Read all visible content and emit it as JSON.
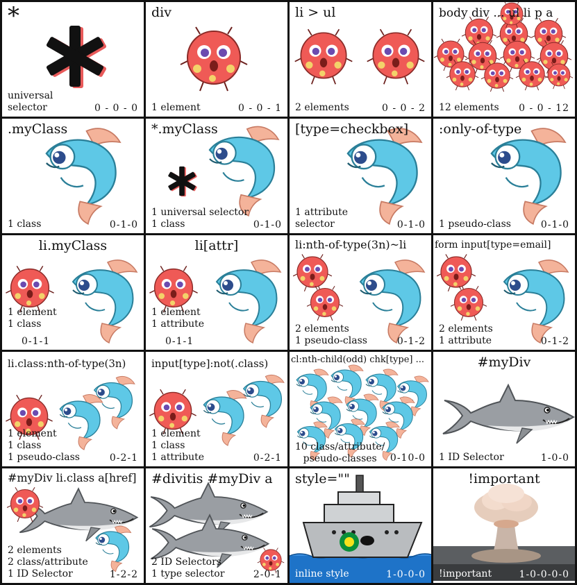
{
  "cells": [
    {
      "title": "*",
      "desc": "universal\nselector",
      "spec": "0 - 0 - 0"
    },
    {
      "title": "div",
      "desc": "1 element",
      "spec": "0 - 0 - 1"
    },
    {
      "title": "li > ul",
      "desc": "2 elements",
      "spec": "0 - 0 - 2"
    },
    {
      "title": "body div ... ul li p a",
      "desc": "12 elements",
      "spec": "0 - 0 - 12"
    },
    {
      "title": ".myClass",
      "desc": "1 class",
      "spec": "0-1-0"
    },
    {
      "title": "*.myClass",
      "desc": "1 universal selector\n1 class",
      "spec": "0-1-0"
    },
    {
      "title": "[type=checkbox]",
      "desc": "1 attribute\nselector",
      "spec": "0-1-0"
    },
    {
      "title": ":only-of-type",
      "desc": "1 pseudo-class",
      "spec": "0-1-0"
    },
    {
      "title": "li.myClass",
      "desc": "1 element\n1 class",
      "spec": "0-1-1"
    },
    {
      "title": "li[attr]",
      "desc": "1 element\n1 attribute",
      "spec": "0-1-1"
    },
    {
      "title": "li:nth-of-type(3n)~li",
      "desc": "2 elements\n1 pseudo-class",
      "spec": "0-1-2"
    },
    {
      "title": "form input[type=email]",
      "desc": "2 elements\n1 attribute",
      "spec": "0-1-2"
    },
    {
      "title": "li.class:nth-of-type(3n)",
      "desc": "1 element\n1 class\n1 pseudo-class",
      "spec": "0-2-1"
    },
    {
      "title": "input[type]:not(.class)",
      "desc": "1 element\n1 class\n1 attribute",
      "spec": "0-2-1"
    },
    {
      "title": "cl:nth-child(odd) chk[type] ...",
      "desc": "10 class/attribute/\npseudo-classes",
      "spec": "0-10-0"
    },
    {
      "title": "#myDiv",
      "desc": "1 ID Selector",
      "spec": "1-0-0"
    },
    {
      "title": "#myDiv li.class a[href]",
      "desc": "2 elements\n2 class/attribute\n1 ID Selector",
      "spec": "1-2-2"
    },
    {
      "title": "#divitis #myDiv a",
      "desc": "2 ID Selectors\n1 type selector",
      "spec": "2-0-1"
    },
    {
      "title": "style=\"\"",
      "desc": "inline style",
      "spec": "1-0-0-0"
    },
    {
      "title": "!important",
      "desc": "!important",
      "spec": "1-0-0-0-0"
    }
  ],
  "colors": {
    "puffer": "#ef5a56",
    "fish": "#5ec8e6",
    "shark": "#9a9ea3",
    "border": "#111111"
  }
}
